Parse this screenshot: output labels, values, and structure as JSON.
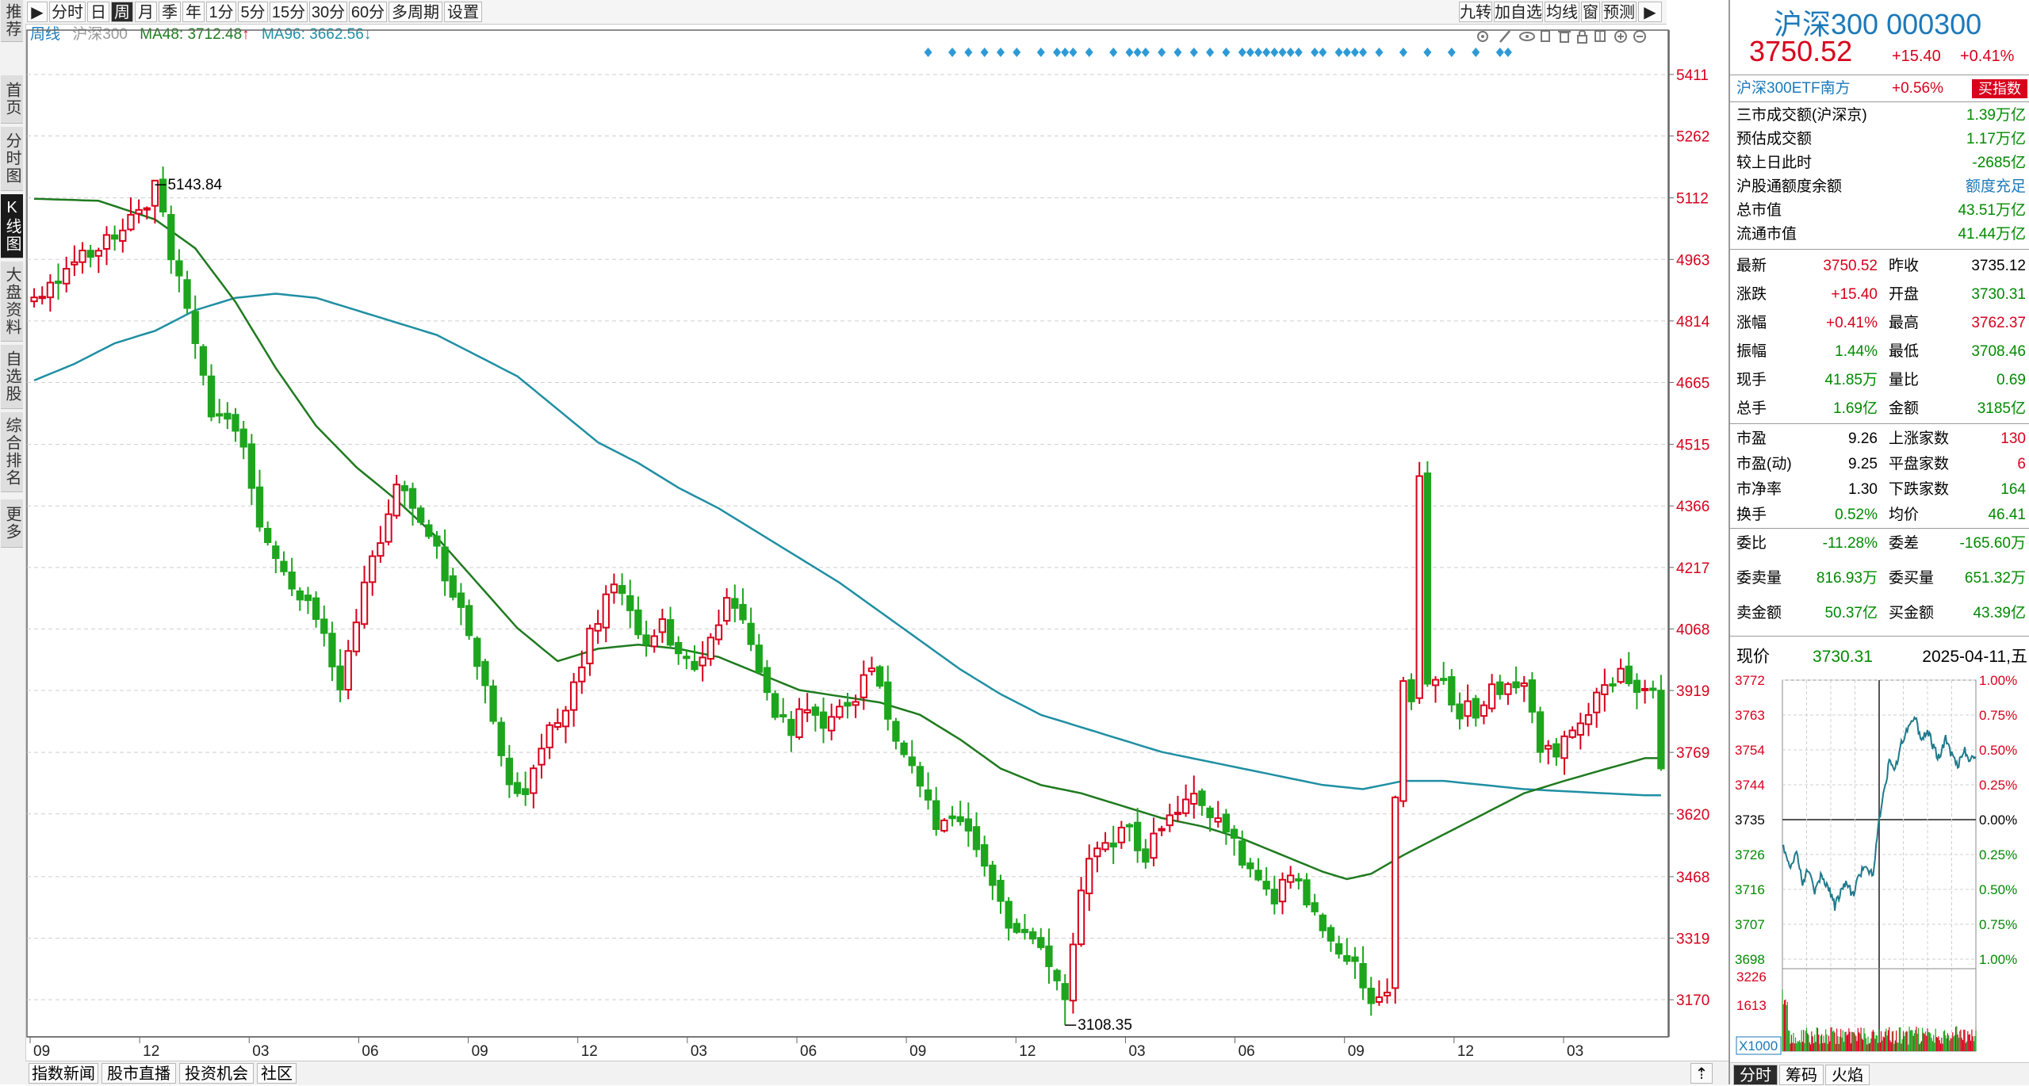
{
  "sidebar": {
    "items": [
      {
        "label": "推荐",
        "active": false
      },
      {
        "label": "首页",
        "active": false
      },
      {
        "label": "分时图",
        "active": false
      },
      {
        "label": "K线图",
        "active": true
      },
      {
        "label": "大盘资料",
        "active": false
      },
      {
        "label": "自选股",
        "active": false
      },
      {
        "label": "综合排名",
        "active": false
      },
      {
        "label": "更多",
        "active": false
      }
    ]
  },
  "toolbar": {
    "periods": [
      {
        "label": "分时",
        "active": false
      },
      {
        "label": "日",
        "active": false
      },
      {
        "label": "周",
        "active": true
      },
      {
        "label": "月",
        "active": false
      },
      {
        "label": "季",
        "active": false
      },
      {
        "label": "年",
        "active": false
      },
      {
        "label": "1分",
        "active": false
      },
      {
        "label": "5分",
        "active": false
      },
      {
        "label": "15分",
        "active": false
      },
      {
        "label": "30分",
        "active": false
      },
      {
        "label": "60分",
        "active": false
      },
      {
        "label": "多周期",
        "active": false
      },
      {
        "label": "设置",
        "active": false
      }
    ],
    "right": [
      {
        "label": "九转"
      },
      {
        "label": "加自选"
      },
      {
        "label": "均线"
      },
      {
        "label": "窗"
      },
      {
        "label": "预测"
      }
    ]
  },
  "legend": {
    "period": "周线",
    "name": "沪深300",
    "ma48": "MA48: 3712.48",
    "ma96": "MA96: 3662.56"
  },
  "chart_data": {
    "type": "candlestick",
    "period": "weekly",
    "ylim": [
      3080,
      5480
    ],
    "y_ticks": [
      5411,
      5262,
      5112,
      4963,
      4814,
      4665,
      4515,
      4366,
      4217,
      4068,
      3919,
      3769,
      3620,
      3468,
      3319,
      3170
    ],
    "x_ticks": [
      "09",
      "12",
      "03",
      "06",
      "09",
      "12",
      "03",
      "06",
      "09",
      "12",
      "03",
      "06",
      "09",
      "12",
      "03"
    ],
    "high_label": "5143.84",
    "low_label": "3108.35",
    "up_color": "#d8001c",
    "down_color": "#1ea51e",
    "ma48_color": "#1f7a1f",
    "ma96_color": "#1f8fa3",
    "signal_color": "#2d9ad6",
    "anchors": [
      [
        0,
        4860
      ],
      [
        3,
        4930
      ],
      [
        7,
        4990
      ],
      [
        10,
        5010
      ],
      [
        13,
        5070
      ],
      [
        15,
        5143
      ],
      [
        17,
        4970
      ],
      [
        19,
        4840
      ],
      [
        21,
        4700
      ],
      [
        22,
        4560
      ],
      [
        24,
        4600
      ],
      [
        26,
        4520
      ],
      [
        28,
        4310
      ],
      [
        30,
        4250
      ],
      [
        32,
        4150
      ],
      [
        34,
        4120
      ],
      [
        36,
        4050
      ],
      [
        38,
        3900
      ],
      [
        40,
        4100
      ],
      [
        42,
        4240
      ],
      [
        44,
        4350
      ],
      [
        45,
        4440
      ],
      [
        47,
        4380
      ],
      [
        49,
        4300
      ],
      [
        51,
        4200
      ],
      [
        53,
        4120
      ],
      [
        55,
        3960
      ],
      [
        57,
        3860
      ],
      [
        59,
        3700
      ],
      [
        61,
        3660
      ],
      [
        63,
        3800
      ],
      [
        65,
        3830
      ],
      [
        67,
        3920
      ],
      [
        69,
        4050
      ],
      [
        71,
        4150
      ],
      [
        72,
        4180
      ],
      [
        74,
        4100
      ],
      [
        76,
        4020
      ],
      [
        78,
        4090
      ],
      [
        80,
        3990
      ],
      [
        82,
        3960
      ],
      [
        84,
        4060
      ],
      [
        86,
        4140
      ],
      [
        88,
        4080
      ],
      [
        90,
        3980
      ],
      [
        92,
        3870
      ],
      [
        94,
        3830
      ],
      [
        96,
        3880
      ],
      [
        98,
        3830
      ],
      [
        100,
        3860
      ],
      [
        102,
        3910
      ],
      [
        104,
        3990
      ],
      [
        106,
        3830
      ],
      [
        108,
        3770
      ],
      [
        110,
        3680
      ],
      [
        112,
        3600
      ],
      [
        114,
        3590
      ],
      [
        116,
        3570
      ],
      [
        118,
        3500
      ],
      [
        120,
        3400
      ],
      [
        122,
        3330
      ],
      [
        124,
        3300
      ],
      [
        126,
        3270
      ],
      [
        128,
        3175
      ],
      [
        130,
        3450
      ],
      [
        132,
        3530
      ],
      [
        134,
        3550
      ],
      [
        136,
        3580
      ],
      [
        138,
        3520
      ],
      [
        140,
        3590
      ],
      [
        142,
        3630
      ],
      [
        144,
        3670
      ],
      [
        146,
        3600
      ],
      [
        148,
        3580
      ],
      [
        150,
        3510
      ],
      [
        152,
        3470
      ],
      [
        154,
        3420
      ],
      [
        156,
        3480
      ],
      [
        158,
        3400
      ],
      [
        160,
        3360
      ],
      [
        162,
        3300
      ],
      [
        164,
        3250
      ],
      [
        166,
        3180
      ],
      [
        168,
        3200
      ],
      [
        169,
        3660
      ],
      [
        170,
        3940
      ],
      [
        171,
        3880
      ],
      [
        172,
        4440
      ],
      [
        173,
        3950
      ],
      [
        175,
        3930
      ],
      [
        177,
        3870
      ],
      [
        179,
        3870
      ],
      [
        181,
        3920
      ],
      [
        183,
        3930
      ],
      [
        185,
        3950
      ],
      [
        187,
        3760
      ],
      [
        189,
        3780
      ],
      [
        191,
        3810
      ],
      [
        193,
        3860
      ],
      [
        195,
        3930
      ],
      [
        197,
        3970
      ],
      [
        199,
        3930
      ],
      [
        201,
        3900
      ],
      [
        202,
        3750
      ]
    ],
    "ma48_anchors": [
      [
        0,
        5110
      ],
      [
        8,
        5105
      ],
      [
        15,
        5060
      ],
      [
        20,
        4990
      ],
      [
        25,
        4860
      ],
      [
        30,
        4700
      ],
      [
        35,
        4560
      ],
      [
        40,
        4460
      ],
      [
        45,
        4380
      ],
      [
        50,
        4290
      ],
      [
        55,
        4180
      ],
      [
        60,
        4070
      ],
      [
        65,
        3990
      ],
      [
        70,
        4020
      ],
      [
        75,
        4030
      ],
      [
        80,
        4020
      ],
      [
        85,
        4000
      ],
      [
        90,
        3960
      ],
      [
        95,
        3920
      ],
      [
        100,
        3905
      ],
      [
        105,
        3890
      ],
      [
        110,
        3860
      ],
      [
        115,
        3800
      ],
      [
        120,
        3730
      ],
      [
        125,
        3690
      ],
      [
        130,
        3670
      ],
      [
        135,
        3640
      ],
      [
        140,
        3610
      ],
      [
        145,
        3590
      ],
      [
        150,
        3560
      ],
      [
        155,
        3520
      ],
      [
        160,
        3480
      ],
      [
        163,
        3462
      ],
      [
        166,
        3475
      ],
      [
        170,
        3520
      ],
      [
        175,
        3570
      ],
      [
        180,
        3620
      ],
      [
        185,
        3670
      ],
      [
        190,
        3700
      ],
      [
        195,
        3728
      ],
      [
        200,
        3755
      ],
      [
        202,
        3755
      ]
    ],
    "ma96_anchors": [
      [
        0,
        4670
      ],
      [
        5,
        4710
      ],
      [
        10,
        4760
      ],
      [
        15,
        4790
      ],
      [
        20,
        4840
      ],
      [
        25,
        4870
      ],
      [
        30,
        4880
      ],
      [
        35,
        4870
      ],
      [
        40,
        4840
      ],
      [
        45,
        4810
      ],
      [
        50,
        4780
      ],
      [
        55,
        4730
      ],
      [
        60,
        4680
      ],
      [
        65,
        4600
      ],
      [
        70,
        4520
      ],
      [
        75,
        4470
      ],
      [
        80,
        4410
      ],
      [
        85,
        4360
      ],
      [
        90,
        4300
      ],
      [
        95,
        4240
      ],
      [
        100,
        4180
      ],
      [
        105,
        4110
      ],
      [
        110,
        4040
      ],
      [
        115,
        3970
      ],
      [
        120,
        3910
      ],
      [
        125,
        3860
      ],
      [
        130,
        3830
      ],
      [
        135,
        3800
      ],
      [
        140,
        3770
      ],
      [
        145,
        3750
      ],
      [
        150,
        3730
      ],
      [
        155,
        3710
      ],
      [
        160,
        3690
      ],
      [
        165,
        3680
      ],
      [
        170,
        3700
      ],
      [
        175,
        3700
      ],
      [
        180,
        3690
      ],
      [
        185,
        3680
      ],
      [
        190,
        3675
      ],
      [
        195,
        3670
      ],
      [
        200,
        3665
      ],
      [
        202,
        3665
      ]
    ],
    "signals": [
      111,
      114,
      116,
      118,
      120,
      122,
      125,
      127,
      128,
      129,
      131,
      134,
      136,
      137,
      138,
      140,
      142,
      144,
      146,
      148,
      150,
      151,
      152,
      153,
      154,
      155,
      156,
      157,
      159,
      160,
      162,
      163,
      164,
      165,
      167,
      170,
      173,
      176,
      179,
      182,
      183
    ]
  },
  "right_panel": {
    "index_name": "沪深300 000300",
    "price": "3750.52",
    "change": "+15.40",
    "change_pct": "+0.41%",
    "etf": {
      "name": "沪深300ETF南方",
      "pct": "+0.56%",
      "button": "买指数"
    },
    "info": [
      {
        "label": "三市成交额(沪深京)",
        "value": "1.39万亿",
        "color": "green"
      },
      {
        "label": "预估成交额",
        "value": "1.17万亿",
        "color": "green"
      },
      {
        "label": "较上日此时",
        "value": "-2685亿",
        "color": "green"
      },
      {
        "label": "沪股通额度余额",
        "value": "额度充足",
        "color": "blue"
      },
      {
        "label": "总市值",
        "value": "43.51万亿",
        "color": "green"
      },
      {
        "label": "流通市值",
        "value": "41.44万亿",
        "color": "green"
      }
    ],
    "quote": [
      {
        "l1": "最新",
        "v1": "3750.52",
        "c1": "red",
        "l2": "昨收",
        "v2": "3735.12",
        "c2": "black"
      },
      {
        "l1": "涨跌",
        "v1": "+15.40",
        "c1": "red",
        "l2": "开盘",
        "v2": "3730.31",
        "c2": "green"
      },
      {
        "l1": "涨幅",
        "v1": "+0.41%",
        "c1": "red",
        "l2": "最高",
        "v2": "3762.37",
        "c2": "red"
      },
      {
        "l1": "振幅",
        "v1": "1.44%",
        "c1": "green",
        "l2": "最低",
        "v2": "3708.46",
        "c2": "green"
      },
      {
        "l1": "现手",
        "v1": "41.85万",
        "c1": "green",
        "l2": "量比",
        "v2": "0.69",
        "c2": "green"
      },
      {
        "l1": "总手",
        "v1": "1.69亿",
        "c1": "green",
        "l2": "金额",
        "v2": "3185亿",
        "c2": "green"
      }
    ],
    "stats": [
      {
        "l1": "市盈",
        "v1": "9.26",
        "c1": "black",
        "l2": "上涨家数",
        "v2": "130",
        "c2": "red"
      },
      {
        "l1": "市盈(动)",
        "v1": "9.25",
        "c1": "black",
        "l2": "平盘家数",
        "v2": "6",
        "c2": "red"
      },
      {
        "l1": "市净率",
        "v1": "1.30",
        "c1": "black",
        "l2": "下跌家数",
        "v2": "164",
        "c2": "green"
      },
      {
        "l1": "换手",
        "v1": "0.52%",
        "c1": "green",
        "l2": "均价",
        "v2": "46.41",
        "c2": "green"
      }
    ],
    "orders": [
      {
        "l1": "委比",
        "v1": "-11.28%",
        "c1": "green",
        "l2": "委差",
        "v2": "-165.60万",
        "c2": "green"
      },
      {
        "l1": "委卖量",
        "v1": "816.93万",
        "c1": "green",
        "l2": "委买量",
        "v2": "651.32万",
        "c2": "green"
      },
      {
        "l1": "卖金额",
        "v1": "50.37亿",
        "c1": "green",
        "l2": "买金额",
        "v2": "43.39亿",
        "c2": "green"
      }
    ],
    "current": {
      "label": "现价",
      "value": "3730.31",
      "date": "2025-04-11,五"
    },
    "mini_chart": {
      "left_ticks": [
        "3772",
        "3763",
        "3754",
        "3744",
        "3735",
        "3726",
        "3716",
        "3707",
        "3698"
      ],
      "right_ticks": [
        "1.00%",
        "0.75%",
        "0.50%",
        "0.25%",
        "0.00%",
        "0.25%",
        "0.50%",
        "0.75%",
        "1.00%"
      ],
      "vol_ticks": [
        "3226",
        "1613"
      ],
      "zoom": "X1000",
      "ylim": [
        3698,
        3772
      ],
      "prev_close": 3735.12,
      "price_anchors": [
        [
          0,
          3728
        ],
        [
          8,
          3722
        ],
        [
          14,
          3726
        ],
        [
          20,
          3718
        ],
        [
          26,
          3722
        ],
        [
          32,
          3716
        ],
        [
          38,
          3720
        ],
        [
          46,
          3717
        ],
        [
          52,
          3712
        ],
        [
          58,
          3716
        ],
        [
          64,
          3718
        ],
        [
          70,
          3715
        ],
        [
          76,
          3720
        ],
        [
          82,
          3723
        ],
        [
          90,
          3720
        ],
        [
          96,
          3735
        ],
        [
          100,
          3742
        ],
        [
          106,
          3750
        ],
        [
          112,
          3748
        ],
        [
          118,
          3755
        ],
        [
          126,
          3760
        ],
        [
          132,
          3762
        ],
        [
          138,
          3756
        ],
        [
          144,
          3759
        ],
        [
          150,
          3754
        ],
        [
          156,
          3751
        ],
        [
          162,
          3757
        ],
        [
          168,
          3752
        ],
        [
          174,
          3749
        ],
        [
          180,
          3754
        ],
        [
          186,
          3751
        ],
        [
          192,
          3752
        ]
      ]
    },
    "tabs": [
      {
        "label": "分时"
      },
      {
        "label": "筹码"
      },
      {
        "label": "火焰"
      }
    ]
  },
  "bottom_bar": {
    "tabs": [
      {
        "label": "指数新闻"
      },
      {
        "label": "股市直播"
      },
      {
        "label": "投资机会"
      },
      {
        "label": "社区"
      }
    ]
  }
}
